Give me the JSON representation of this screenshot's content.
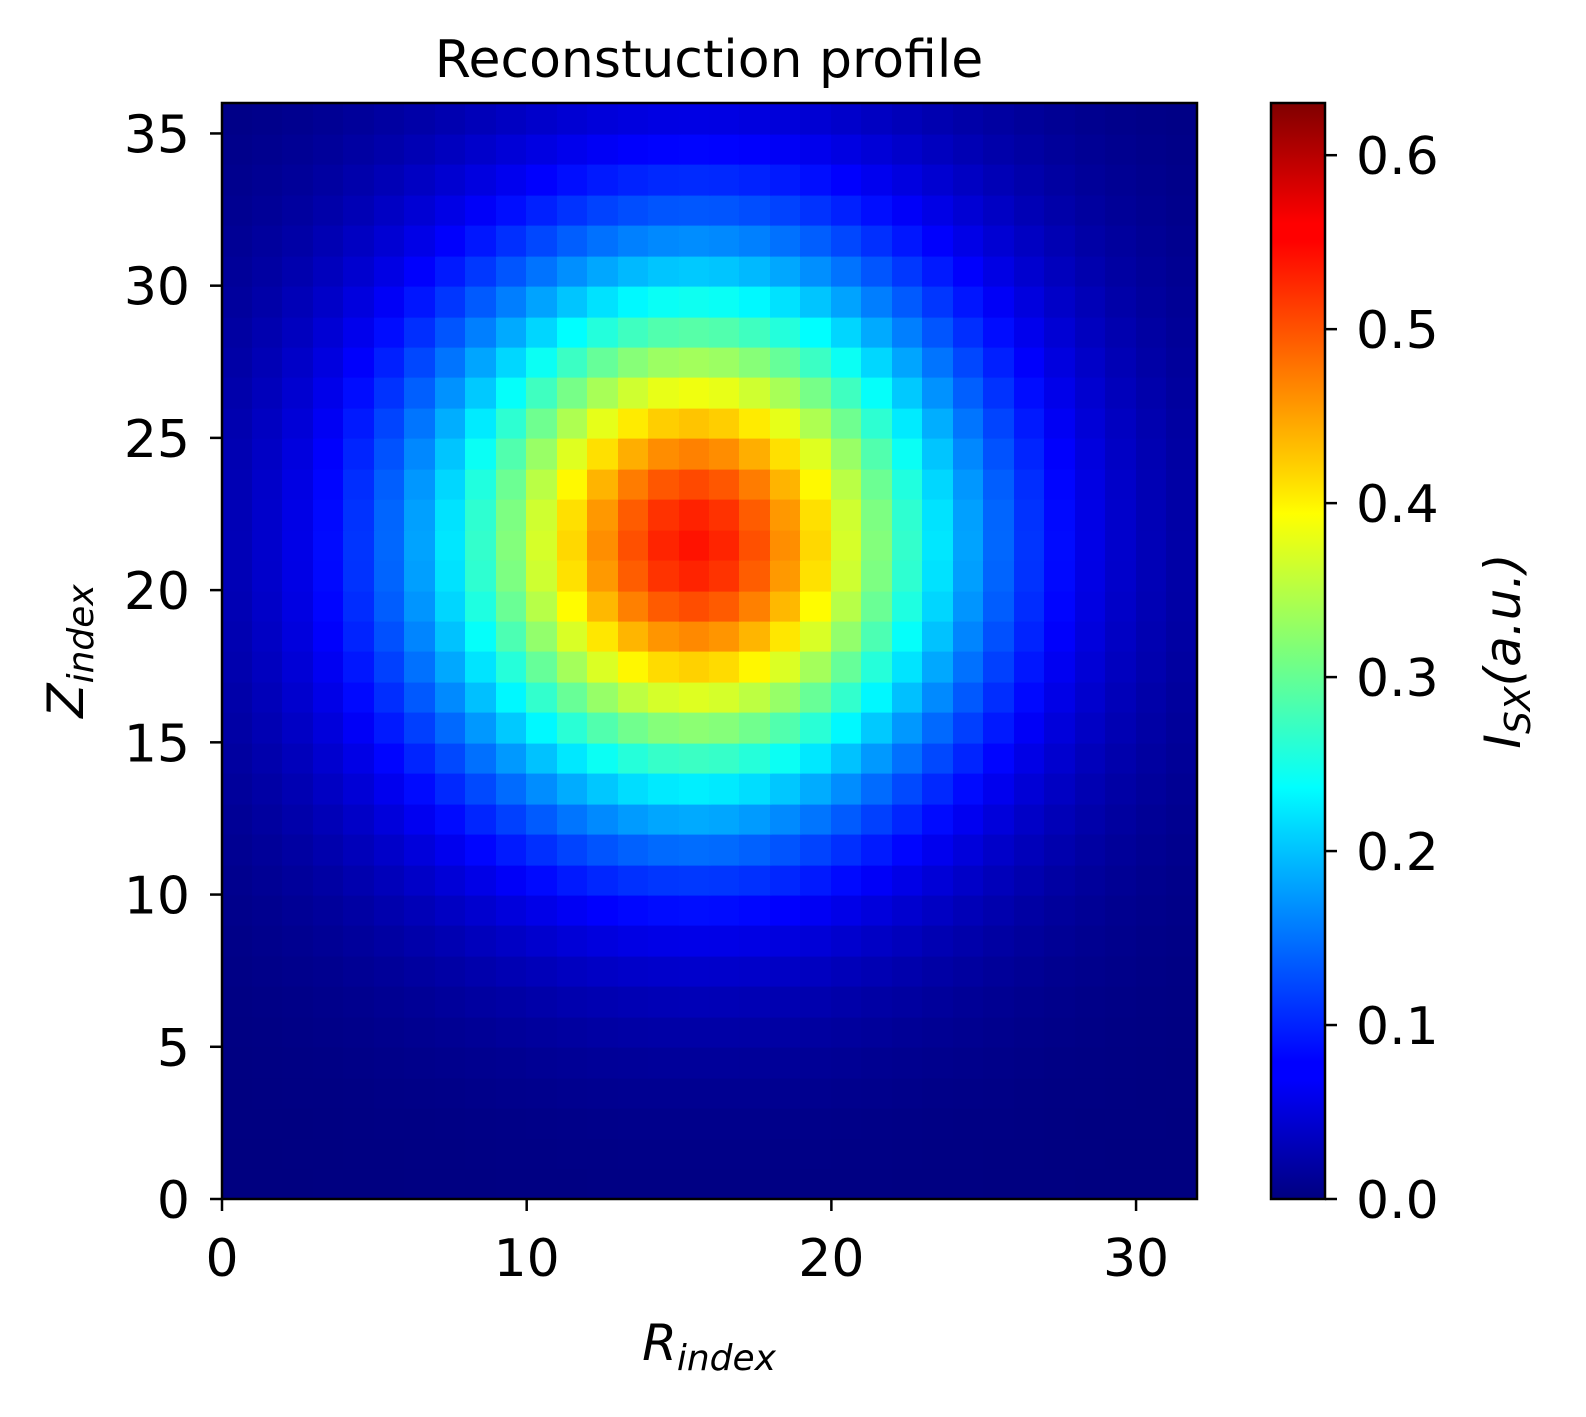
{
  "chart_data": {
    "type": "heatmap",
    "title": "Reconstuction profile",
    "xlabel": {
      "main": "R",
      "sub": "index"
    },
    "ylabel": {
      "main": "Z",
      "sub": "index"
    },
    "colorbar_label": {
      "main": "I",
      "sub": "SX",
      "rest": "(a.u.)"
    },
    "colormap": "jet",
    "n_cols": 32,
    "n_rows": 36,
    "xlim": [
      0,
      32
    ],
    "ylim": [
      0,
      36
    ],
    "vlim": [
      0,
      0.63
    ],
    "x_ticks": [
      0,
      10,
      20,
      30
    ],
    "x_tick_labels": [
      "0",
      "10",
      "20",
      "30"
    ],
    "y_ticks": [
      0,
      5,
      10,
      15,
      20,
      25,
      30,
      35
    ],
    "y_tick_labels": [
      "0",
      "5",
      "10",
      "15",
      "20",
      "25",
      "30",
      "35"
    ],
    "colorbar_ticks": [
      0.0,
      0.1,
      0.2,
      0.3,
      0.4,
      0.5,
      0.6
    ],
    "colorbar_tick_labels": [
      "0.0",
      "0.1",
      "0.2",
      "0.3",
      "0.4",
      "0.5",
      "0.6"
    ],
    "peak": {
      "r": 15.5,
      "z": 21.5,
      "value": 0.54
    },
    "profile": {
      "sigma_r": 5.8,
      "sigma_z": 6.2,
      "falloff_exponent": 1.8,
      "bottom_floor_fraction": 0.55
    }
  }
}
